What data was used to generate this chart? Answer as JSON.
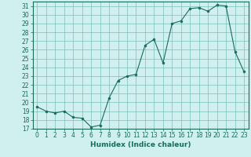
{
  "x": [
    0,
    1,
    2,
    3,
    4,
    5,
    6,
    7,
    8,
    9,
    10,
    11,
    12,
    13,
    14,
    15,
    16,
    17,
    18,
    19,
    20,
    21,
    22,
    23
  ],
  "y": [
    19.5,
    19.0,
    18.8,
    19.0,
    18.3,
    18.2,
    17.2,
    17.4,
    20.5,
    22.5,
    23.0,
    23.2,
    26.5,
    27.2,
    24.5,
    29.0,
    29.3,
    30.7,
    30.8,
    30.4,
    31.1,
    31.0,
    25.8,
    23.5
  ],
  "line_color": "#1a6b5a",
  "marker_color": "#1a6b5a",
  "bg_color": "#cff0ee",
  "grid_color": "#7bbdb5",
  "axis_color": "#1a6b5a",
  "xlabel": "Humidex (Indice chaleur)",
  "xlim": [
    -0.5,
    23.5
  ],
  "ylim": [
    17,
    31.5
  ],
  "yticks": [
    17,
    18,
    19,
    20,
    21,
    22,
    23,
    24,
    25,
    26,
    27,
    28,
    29,
    30,
    31
  ],
  "xticks": [
    0,
    1,
    2,
    3,
    4,
    5,
    6,
    7,
    8,
    9,
    10,
    11,
    12,
    13,
    14,
    15,
    16,
    17,
    18,
    19,
    20,
    21,
    22,
    23
  ],
  "xlabel_fontsize": 6.5,
  "tick_fontsize": 5.5
}
